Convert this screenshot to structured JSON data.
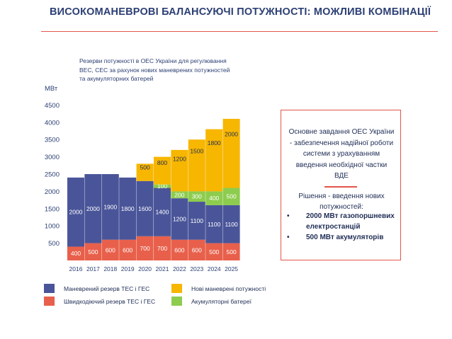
{
  "title": "ВИСОКОМАНЕВРОВІ БАЛАНСУЮЧІ ПОТУЖНОСТІ: МОЖЛИВІ КОМБІНАЦІЇ",
  "subtitle": "Резерви потужності в ОЕС України для регулювання ВЕС, СЕС за рахунок нових маневрених потужностей та акумуляторних батерей",
  "colors": {
    "maneuver": "#4a5599",
    "fast": "#e8604b",
    "new_maneuver": "#f7b600",
    "battery": "#8dcc4e",
    "title": "#2c3f74",
    "accent": "#e2564a"
  },
  "chart_data": {
    "type": "bar",
    "stacked": true,
    "title": "Резерви потужності в ОЕС України для регулювання ВЕС, СЕС за рахунок нових маневрених потужностей та акумуляторних батерей",
    "ylabel": "МВт",
    "xlabel": "",
    "ylim": [
      0,
      4500
    ],
    "yticks": [
      500,
      1000,
      1500,
      2000,
      2500,
      3000,
      3500,
      4000,
      4500
    ],
    "categories": [
      "2016",
      "2017",
      "2018",
      "2019",
      "2020",
      "2021",
      "2022",
      "2023",
      "2024",
      "2025"
    ],
    "series": [
      {
        "name": "Швидкодіючий резерв ТЕС і ГЕС",
        "color_key": "fast",
        "values": [
          400,
          500,
          600,
          600,
          700,
          700,
          600,
          600,
          500,
          500
        ]
      },
      {
        "name": "Маневрений резерв ТЕС і ГЕС",
        "color_key": "maneuver",
        "values": [
          2000,
          2000,
          1900,
          1800,
          1600,
          1400,
          1200,
          1100,
          1100,
          1100
        ]
      },
      {
        "name": "Акумуляторні батереї",
        "color_key": "battery",
        "values": [
          0,
          0,
          0,
          0,
          0,
          100,
          200,
          300,
          400,
          500
        ]
      },
      {
        "name": "Нові маневрені потужності",
        "color_key": "new_maneuver",
        "values": [
          0,
          0,
          0,
          0,
          500,
          800,
          1200,
          1500,
          1800,
          2000
        ]
      }
    ]
  },
  "sidebox": {
    "main": "Основне завдання ОЕС України - забезпечення надійної роботи системи з урахуванням введення необхідної частки ВДЕ",
    "solution": "Рішення - введення нових потужностей:",
    "items": [
      "2000 МВт газопоршневих електростанцій",
      "500 МВт акумуляторів"
    ]
  },
  "legend": {
    "maneuver": "Маневрений резерв ТЕС і ГЕС",
    "fast": "Швидкодіючий резерв ТЕС і ГЕС",
    "new_maneuver": "Нові маневрені потужності",
    "battery": "Акумуляторні батереї"
  }
}
